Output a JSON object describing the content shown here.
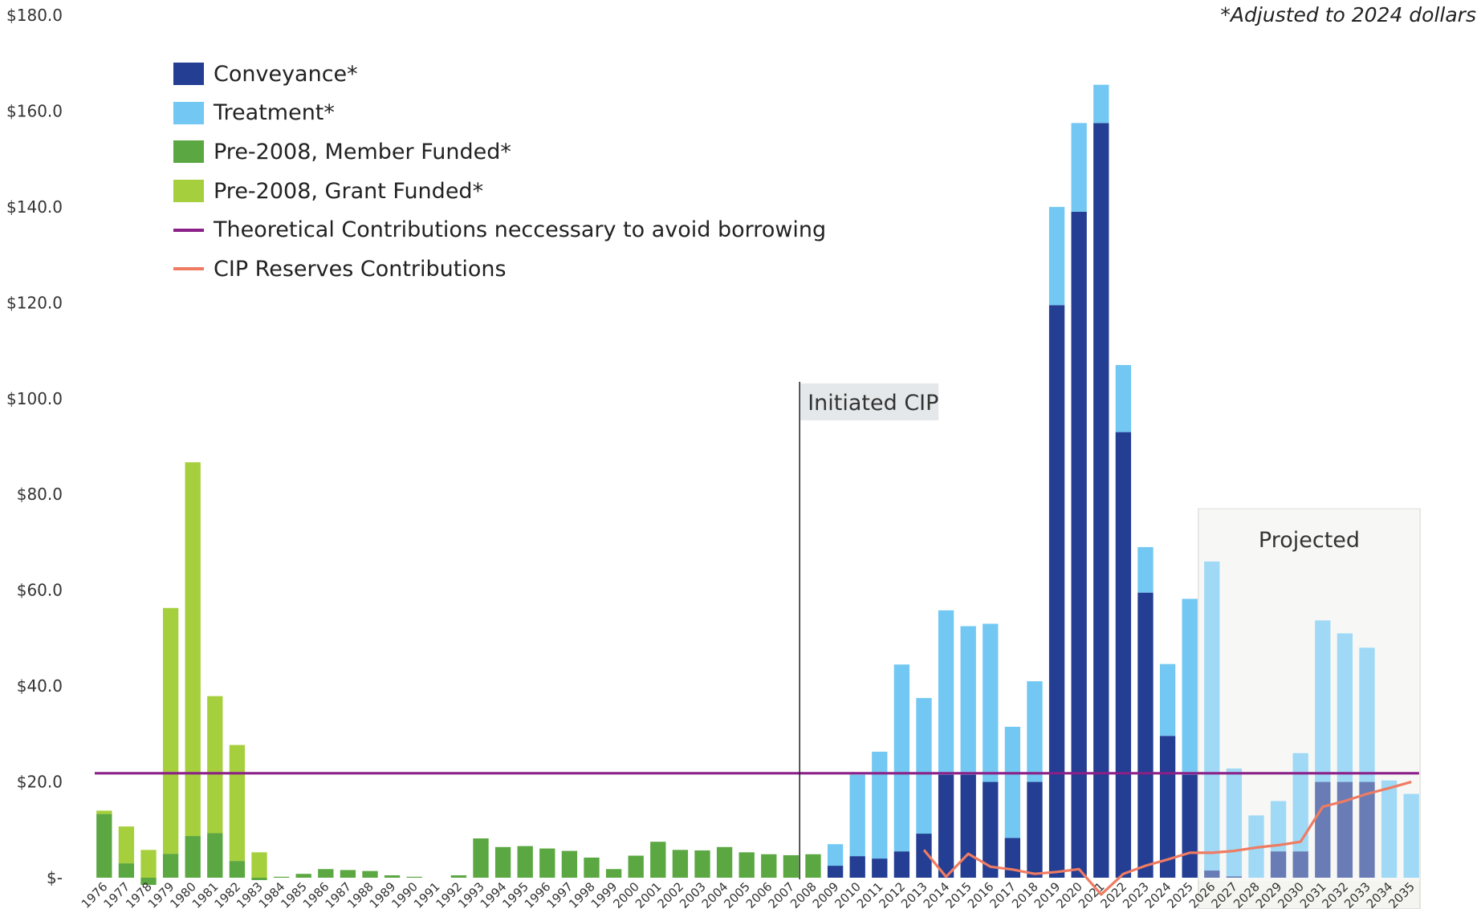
{
  "note": "*Adjusted to 2024 dollars",
  "chart_data": {
    "type": "bar",
    "stacked": true,
    "ylim": [
      0,
      180
    ],
    "yticks": [
      0,
      20,
      40,
      60,
      80,
      100,
      120,
      140,
      160,
      180
    ],
    "ytick_labels": [
      "$-",
      "$20.0",
      "$40.0",
      "$60.0",
      "$80.0",
      "$100.0",
      "$120.0",
      "$140.0",
      "$160.0",
      "$180.0"
    ],
    "categories": [
      "1976",
      "1977",
      "1978",
      "1979",
      "1980",
      "1981",
      "1982",
      "1983",
      "1984",
      "1985",
      "1986",
      "1987",
      "1988",
      "1989",
      "1990",
      "1991",
      "1992",
      "1993",
      "1994",
      "1995",
      "1996",
      "1997",
      "1998",
      "1999",
      "2000",
      "2001",
      "2002",
      "2003",
      "2004",
      "2005",
      "2006",
      "2007",
      "2008",
      "2009",
      "2010",
      "2011",
      "2012",
      "2013",
      "2014",
      "2015",
      "2016",
      "2017",
      "2018",
      "2019",
      "2020",
      "2021",
      "2022",
      "2023",
      "2024",
      "2025",
      "2026",
      "2027",
      "2028",
      "2029",
      "2030",
      "2031",
      "2032",
      "2033",
      "2034",
      "2035"
    ],
    "series": [
      {
        "name": "Conveyance*",
        "color": "#233e92",
        "values": [
          0,
          0,
          0,
          0,
          0,
          0,
          0,
          0,
          0,
          0,
          0,
          0,
          0,
          0,
          0,
          0,
          0,
          0,
          0,
          0,
          0,
          0,
          0,
          0,
          0,
          0,
          0,
          0,
          0,
          0,
          0,
          0,
          0,
          2.5,
          4.5,
          4,
          5.5,
          9.2,
          21.5,
          21.5,
          20,
          8.3,
          20,
          119.5,
          139,
          157.5,
          93,
          59.5,
          29.6,
          21.5,
          1.5,
          0.3,
          0,
          5.5,
          5.5,
          20,
          20,
          20,
          0,
          0
        ]
      },
      {
        "name": "Treatment*",
        "color": "#72c8f2",
        "values": [
          0,
          0,
          0,
          0,
          0,
          0,
          0,
          0,
          0,
          0,
          0,
          0,
          0,
          0,
          0,
          0,
          0,
          0,
          0,
          0,
          0,
          0,
          0,
          0,
          0,
          0,
          0,
          0,
          0,
          0,
          0,
          0,
          0,
          4.5,
          17,
          22.3,
          39,
          28.3,
          34.3,
          31,
          33,
          23.2,
          21,
          20.5,
          18.5,
          8,
          14,
          9.5,
          15,
          36.7,
          64.5,
          22.5,
          13,
          10.5,
          20.5,
          33.7,
          31,
          28,
          20.3,
          17.5
        ]
      },
      {
        "name": "Pre-2008, Member Funded*",
        "color": "#5ba741",
        "values": [
          13.3,
          3,
          -1.5,
          5,
          8.7,
          9.3,
          3.5,
          -0.5,
          0.2,
          0.8,
          1.8,
          1.6,
          1.4,
          0.5,
          0.2,
          0,
          0.5,
          8.2,
          6.4,
          6.6,
          6.1,
          5.6,
          4.2,
          1.8,
          4.6,
          7.5,
          5.8,
          5.7,
          6.4,
          5.3,
          4.9,
          4.7,
          4.9,
          0,
          0,
          0,
          0,
          0,
          0,
          0,
          0,
          0,
          0,
          0,
          0,
          0,
          0,
          0,
          0,
          0,
          0,
          0,
          0,
          0,
          0,
          0,
          0,
          0,
          0,
          0
        ]
      },
      {
        "name": "Pre-2008, Grant Funded*",
        "color": "#a6cf3d",
        "values": [
          0.7,
          7.7,
          5.8,
          51.3,
          78,
          28.6,
          24.2,
          5.3,
          0,
          0,
          0,
          0,
          0,
          0,
          0,
          0,
          0,
          0,
          0,
          0,
          0,
          0,
          0,
          0,
          0,
          0,
          0,
          0,
          0,
          0,
          0,
          0,
          0,
          0,
          0,
          0,
          0,
          0,
          0,
          0,
          0,
          0,
          0,
          0,
          0,
          0,
          0,
          0,
          0,
          0,
          0,
          0,
          0,
          0,
          0,
          0,
          0,
          0,
          0,
          0
        ]
      }
    ],
    "lines": [
      {
        "name": "Theoretical Contributions neccessary to avoid borrowing",
        "color": "#8b2088",
        "x_start": "1976",
        "x_end": "2035",
        "value": 21.8
      },
      {
        "name": "CIP Reserves Contributions",
        "color": "#ef7b62",
        "x": [
          "2013",
          "2014",
          "2015",
          "2016",
          "2017",
          "2018",
          "2019",
          "2020",
          "2021",
          "2022",
          "2023",
          "2024",
          "2025",
          "2026",
          "2027",
          "2028",
          "2029",
          "2030",
          "2031",
          "2032",
          "2033",
          "2034",
          "2035"
        ],
        "values": [
          5.8,
          0.2,
          5,
          2.3,
          1.7,
          0.8,
          1.2,
          1.8,
          -3.5,
          0.8,
          2.5,
          3.8,
          5.2,
          5.2,
          5.6,
          6.3,
          6.8,
          7.5,
          14.8,
          16,
          17.5,
          18.7,
          20
        ]
      }
    ],
    "annotations": [
      {
        "text": "Initiated CIP",
        "at": "2008",
        "y_top": 103.5
      },
      {
        "text": "Projected",
        "from": "2026",
        "to": "2035",
        "y_top": 77
      }
    ],
    "grid": false,
    "legend_position": "top-left"
  }
}
